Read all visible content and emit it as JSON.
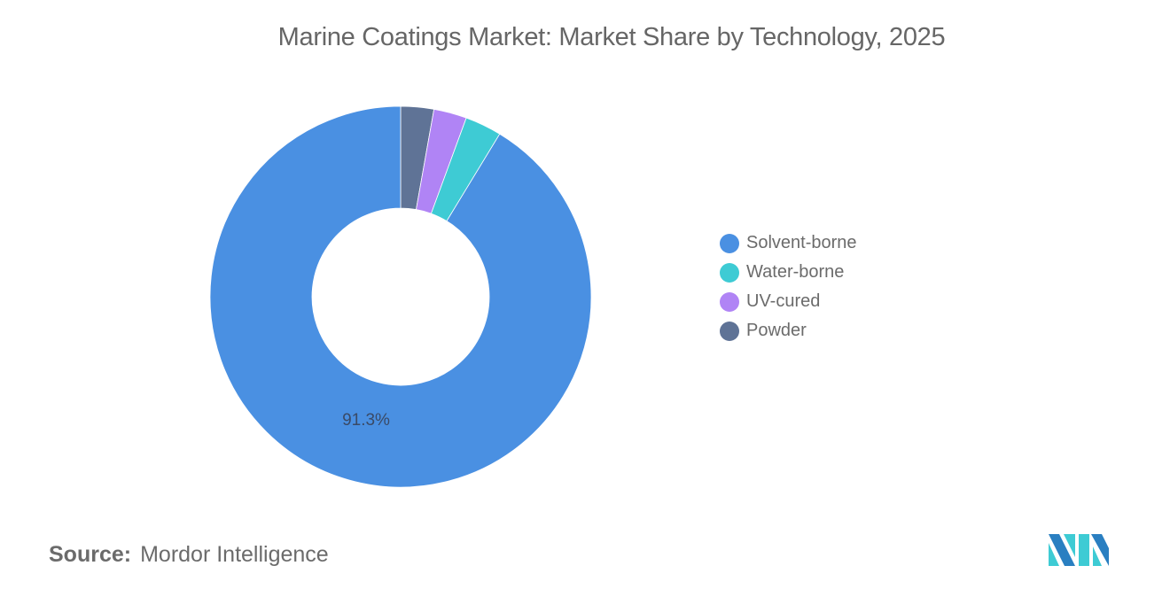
{
  "title": "Marine Coatings Market: Market Share by Technology, 2025",
  "source": {
    "label": "Source:",
    "value": "Mordor Intelligence"
  },
  "legend": [
    {
      "label": "Solvent-borne",
      "color": "#4a90e2"
    },
    {
      "label": "Water-borne",
      "color": "#3ecbd4"
    },
    {
      "label": "UV-cured",
      "color": "#b084f5"
    },
    {
      "label": "Powder",
      "color": "#5f7396"
    }
  ],
  "data_label": "91.3%",
  "chart_data": {
    "type": "pie",
    "subtype": "donut",
    "title": "Marine Coatings Market: Market Share by Technology, 2025",
    "categories": [
      "Solvent-borne",
      "Water-borne",
      "UV-cured",
      "Powder"
    ],
    "values": [
      91.3,
      3.1,
      2.8,
      2.8
    ],
    "colors": [
      "#4a90e2",
      "#3ecbd4",
      "#b084f5",
      "#5f7396"
    ],
    "annotations": [
      {
        "category": "Solvent-borne",
        "text": "91.3%"
      }
    ],
    "legend_position": "right",
    "source": "Mordor Intelligence"
  }
}
